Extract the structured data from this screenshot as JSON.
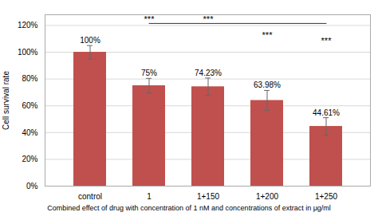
{
  "chart_data": {
    "type": "bar",
    "categories": [
      "control",
      "1",
      "1+150",
      "1+200",
      "1+250"
    ],
    "values": [
      1.0,
      0.75,
      0.7423,
      0.6398,
      0.4461
    ],
    "errors": [
      0.05,
      0.055,
      0.065,
      0.075,
      0.065
    ],
    "value_labels": [
      "100%",
      "75%",
      "74.23%",
      "63.98%",
      "44.61%"
    ],
    "data_labels": true,
    "color": "#c0504d",
    "ylabel": "Cell survival rate",
    "xlabel": "Combined effect of drug with concentration of 1 nM and concentrations of extract in μg/ml",
    "ylim": [
      0,
      1.28
    ],
    "yticks": [
      {
        "value": 0,
        "label": "0%"
      },
      {
        "value": 0.2,
        "label": "20%"
      },
      {
        "value": 0.4,
        "label": "40%"
      },
      {
        "value": 0.6,
        "label": "60%"
      },
      {
        "value": 0.8,
        "label": "80%"
      },
      {
        "value": 1.0,
        "label": "100%"
      },
      {
        "value": 1.2,
        "label": "120%"
      }
    ],
    "grid": true,
    "annotations": [
      {
        "text": "***",
        "x": "1",
        "y": 1.215
      },
      {
        "text": "***",
        "x": "1+150",
        "y": 1.215
      },
      {
        "text": "***",
        "x": "1+200",
        "y": 1.1
      },
      {
        "text": "***",
        "x": "1+250",
        "y": 1.055
      }
    ],
    "bracket": {
      "x_start": "1",
      "x_end": "1+250",
      "y": 1.215
    }
  }
}
